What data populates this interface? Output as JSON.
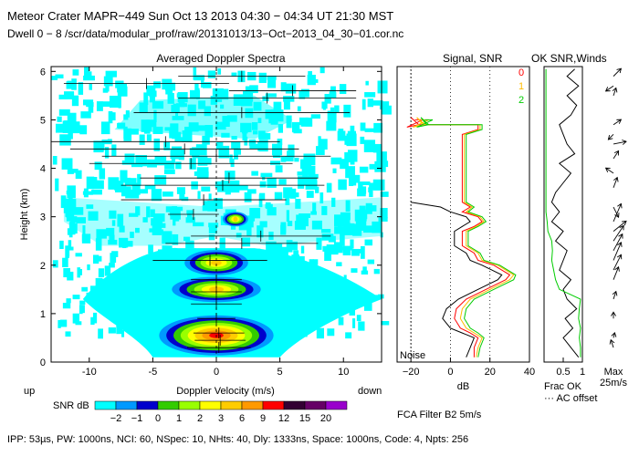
{
  "header": {
    "line1": "Meteor Crater   MAPR−449   Sun Oct 13 2013 04:30 − 04:34 UT 21:30 MST",
    "line2": "Dwell   0  −   8     /scr/data/modular_prof/raw/20131013/13−Oct−2013_04_30−01.cor.nc"
  },
  "footer": "IPP: 53µs,  PW: 1000ns,  NCI: 60,  NSpec: 10, NHts: 40,  Dly: 1333ns,  Space: 1000ns,  Code: 4,  Npts: 256",
  "chart_data": [
    {
      "type": "heatmap",
      "title": "Averaged Doppler Spectra",
      "xlabel": "Doppler Velocity (m/s)",
      "ylabel": "Height (km)",
      "xlim": [
        -13,
        13
      ],
      "ylim": [
        0,
        6.1
      ],
      "xticks": [
        -10,
        -5,
        0,
        5,
        10
      ],
      "yticks": [
        0,
        1,
        2,
        3,
        4,
        5,
        6
      ],
      "x_side_labels": {
        "left": "up",
        "right": "down"
      },
      "colorbar": {
        "label": "SNR dB",
        "levels": [
          "−2",
          "−1",
          "0",
          "1",
          "2",
          "3",
          "6",
          "9",
          "12",
          "15",
          "20"
        ],
        "colors": [
          "#00ffff",
          "#0099ff",
          "#0000cc",
          "#33cc00",
          "#99ff00",
          "#ffff00",
          "#ffcc00",
          "#ff9900",
          "#ff0000",
          "#330033",
          "#660066",
          "#9900cc"
        ]
      },
      "cores": [
        {
          "height_km": 0.55,
          "velocity": 0,
          "halfwidth": 4.5,
          "peak": "red"
        },
        {
          "height_km": 1.5,
          "velocity": 0,
          "halfwidth": 3.5,
          "peak": "yellow"
        },
        {
          "height_km": 2.05,
          "velocity": 0,
          "halfwidth": 2.5,
          "peak": "yellow"
        },
        {
          "height_km": 2.95,
          "velocity": 1.5,
          "halfwidth": 1.0,
          "peak": "yellow"
        }
      ],
      "spectral_bars": [
        {
          "height_km": 0.3,
          "center": 0.2,
          "halfwidth": 2.5
        },
        {
          "height_km": 0.45,
          "center": 0.3,
          "halfwidth": 2.0
        },
        {
          "height_km": 0.6,
          "center": 0.2,
          "halfwidth": 2.0
        },
        {
          "height_km": 0.9,
          "center": 0.0,
          "halfwidth": 1.5
        },
        {
          "height_km": 1.2,
          "center": 0.0,
          "halfwidth": 2.0
        },
        {
          "height_km": 1.45,
          "center": 0.0,
          "halfwidth": 2.0
        },
        {
          "height_km": 1.7,
          "center": 0.0,
          "halfwidth": 2.0
        },
        {
          "height_km": 2.1,
          "center": -0.5,
          "halfwidth": 4.5
        },
        {
          "height_km": 2.45,
          "center": 2.0,
          "halfwidth": 6.0
        },
        {
          "height_km": 2.6,
          "center": 3.5,
          "halfwidth": 5.5
        },
        {
          "height_km": 3.05,
          "center": -1.8,
          "halfwidth": 2.0
        },
        {
          "height_km": 3.35,
          "center": -1.0,
          "halfwidth": 6.5
        },
        {
          "height_km": 3.65,
          "center": 0.5,
          "halfwidth": 8.0
        },
        {
          "height_km": 3.8,
          "center": 1.0,
          "halfwidth": 7.0
        },
        {
          "height_km": 4.1,
          "center": -2.0,
          "halfwidth": 8.0
        },
        {
          "height_km": 4.25,
          "center": 0.0,
          "halfwidth": 9.0
        },
        {
          "height_km": 4.4,
          "center": -2.5,
          "halfwidth": 9.0
        },
        {
          "height_km": 4.55,
          "center": -4.0,
          "halfwidth": 9.0
        },
        {
          "height_km": 5.15,
          "center": 2.0,
          "halfwidth": 8.5
        },
        {
          "height_km": 5.45,
          "center": 4.0,
          "halfwidth": 7.0
        },
        {
          "height_km": 5.6,
          "center": 6.0,
          "halfwidth": 5.0
        },
        {
          "height_km": 5.75,
          "center": -5.5,
          "halfwidth": 6.5
        },
        {
          "height_km": 5.9,
          "center": 2.0,
          "halfwidth": 5.0
        }
      ]
    },
    {
      "type": "line",
      "title": "Signal, SNR",
      "xlabel": "dB",
      "xlim": [
        -27,
        40
      ],
      "xticks": [
        -20,
        0,
        20,
        40
      ],
      "ylim": [
        0,
        6.1
      ],
      "annotation": "Noise",
      "series": [
        {
          "name": "noise",
          "color": "#000000",
          "style": "dashed",
          "x": [
            -20,
            -20
          ],
          "y": [
            0,
            6.1
          ]
        },
        {
          "name": "0",
          "color": "#ff0000",
          "x": [
            12,
            12,
            14,
            10,
            5,
            2,
            3,
            8,
            18,
            28,
            30,
            22,
            14,
            12,
            6,
            6,
            12,
            16,
            14,
            6,
            10,
            6,
            6,
            14,
            14,
            -16,
            -20,
            -16,
            -22,
            -14,
            -18
          ],
          "y": [
            0.1,
            0.3,
            0.5,
            0.6,
            0.7,
            0.9,
            1.1,
            1.3,
            1.5,
            1.7,
            1.8,
            2.0,
            2.1,
            2.25,
            2.4,
            2.7,
            2.8,
            2.9,
            3.0,
            3.1,
            3.2,
            3.3,
            4.7,
            4.8,
            4.9,
            4.9,
            5.05,
            4.9,
            4.85,
            5.0,
            5.0
          ]
        },
        {
          "name": "1",
          "color": "#ffbb00",
          "x": [
            13,
            14,
            16,
            12,
            8,
            5,
            6,
            10,
            20,
            30,
            32,
            24,
            16,
            14,
            8,
            8,
            13,
            17,
            15,
            8,
            11,
            7,
            7,
            15,
            15,
            -14,
            -17,
            -13,
            -19,
            -11,
            -15
          ],
          "y": [
            0.1,
            0.3,
            0.5,
            0.6,
            0.7,
            0.9,
            1.1,
            1.3,
            1.5,
            1.7,
            1.8,
            2.0,
            2.1,
            2.25,
            2.4,
            2.7,
            2.8,
            2.9,
            3.0,
            3.1,
            3.2,
            3.3,
            4.7,
            4.8,
            4.9,
            4.9,
            5.05,
            4.9,
            4.85,
            5.0,
            5.0
          ]
        },
        {
          "name": "2",
          "color": "#00cc00",
          "x": [
            14,
            15,
            17,
            14,
            10,
            7,
            8,
            12,
            22,
            32,
            33,
            25,
            17,
            15,
            9,
            9,
            14,
            18,
            16,
            9,
            12,
            8,
            8,
            16,
            16,
            -12,
            -15,
            -11,
            -17,
            -9,
            -13
          ],
          "y": [
            0.1,
            0.3,
            0.5,
            0.6,
            0.7,
            0.9,
            1.1,
            1.3,
            1.5,
            1.7,
            1.8,
            2.0,
            2.1,
            2.25,
            2.4,
            2.7,
            2.8,
            2.9,
            3.0,
            3.1,
            3.2,
            3.3,
            4.7,
            4.8,
            4.9,
            4.9,
            5.05,
            4.9,
            4.85,
            5.0,
            5.0
          ]
        },
        {
          "name": "signal",
          "color": "#000000",
          "x": [
            8,
            10,
            12,
            6,
            0,
            -4,
            -2,
            4,
            14,
            24,
            26,
            16,
            10,
            8,
            2,
            2,
            6,
            10,
            8,
            0,
            -5,
            -20
          ],
          "y": [
            0.1,
            0.3,
            0.5,
            0.6,
            0.7,
            0.9,
            1.1,
            1.3,
            1.5,
            1.7,
            1.8,
            2.0,
            2.1,
            2.25,
            2.4,
            2.7,
            2.8,
            2.9,
            3.0,
            3.1,
            3.2,
            3.3
          ]
        }
      ],
      "legend": [
        "0",
        "1",
        "2"
      ],
      "footnote": "FCA Filter B2   5m/s"
    },
    {
      "type": "line",
      "title": "OK SNR,Winds",
      "xlabel": "Frac OK",
      "xlim": [
        0,
        1
      ],
      "xticks": [
        0.5,
        1
      ],
      "xtick_labels": [
        "0.5",
        "1"
      ],
      "ylim": [
        0,
        6.1
      ],
      "legend_note": "··· AC offset",
      "series": [
        {
          "name": "frac_ok",
          "color": "#000000",
          "x": [
            0.9,
            0.7,
            0.5,
            0.75,
            0.55,
            0.85,
            0.6,
            0.5,
            0.7,
            0.4,
            0.5,
            0.6,
            0.3,
            0.5,
            0.2,
            0.4,
            0.2,
            0.3,
            0.5,
            0.7,
            0.4,
            0.8,
            0.6,
            0.5,
            0.4,
            0.7,
            0.85,
            0.6,
            0.9,
            0.6,
            0.8
          ],
          "y": [
            0.1,
            0.3,
            0.5,
            0.7,
            0.9,
            1.1,
            1.3,
            1.5,
            1.7,
            1.9,
            2.1,
            2.3,
            2.5,
            2.7,
            2.9,
            3.1,
            3.3,
            3.5,
            3.7,
            3.9,
            4.1,
            4.3,
            4.5,
            4.7,
            4.9,
            5.1,
            5.3,
            5.5,
            5.7,
            5.9,
            6.05
          ]
        },
        {
          "name": "ac_offset",
          "color": "#00cc00",
          "x": [
            0.95,
            0.95,
            0.92,
            0.95,
            0.9,
            0.92,
            0.95,
            0.4,
            0.3,
            0.25,
            0.2,
            0.22,
            0.2,
            0.1,
            0.08,
            0.05,
            0.05,
            0.05,
            0.05,
            0.05,
            0.05,
            0.05,
            0.05
          ],
          "y": [
            0.1,
            0.3,
            0.5,
            0.7,
            0.9,
            1.1,
            1.3,
            1.5,
            1.7,
            1.9,
            2.1,
            2.3,
            2.5,
            2.7,
            2.9,
            3.1,
            3.5,
            4.0,
            4.5,
            5.0,
            5.5,
            5.8,
            6.05
          ]
        }
      ],
      "winds_label": "Max\n25m/s",
      "winds": [
        {
          "height_km": 0.3,
          "u": -0.1,
          "v": 0.3
        },
        {
          "height_km": 0.5,
          "u": 0.05,
          "v": 0.2
        },
        {
          "height_km": 0.9,
          "u": 0.0,
          "v": 0.25
        },
        {
          "height_km": 1.3,
          "u": 0.1,
          "v": 0.3
        },
        {
          "height_km": 1.7,
          "u": 0.2,
          "v": 0.5
        },
        {
          "height_km": 1.9,
          "u": 0.3,
          "v": 0.6
        },
        {
          "height_km": 2.1,
          "u": 0.3,
          "v": 0.7
        },
        {
          "height_km": 2.3,
          "u": 0.35,
          "v": 0.65
        },
        {
          "height_km": 2.5,
          "u": 0.4,
          "v": 0.6
        },
        {
          "height_km": 2.7,
          "u": 0.5,
          "v": 0.4
        },
        {
          "height_km": 2.9,
          "u": 0.3,
          "v": 0.7
        },
        {
          "height_km": 3.2,
          "u": 0.2,
          "v": -0.4
        },
        {
          "height_km": 3.6,
          "u": 0.15,
          "v": 0.4
        },
        {
          "height_km": 3.9,
          "u": -0.3,
          "v": 0.2
        },
        {
          "height_km": 4.2,
          "u": 0.2,
          "v": 0.3
        },
        {
          "height_km": 4.5,
          "u": 0.5,
          "v": 0.1
        },
        {
          "height_km": 4.7,
          "u": -0.2,
          "v": -0.2
        },
        {
          "height_km": 4.9,
          "u": 0.3,
          "v": 0.2
        },
        {
          "height_km": 5.5,
          "u": 0.1,
          "v": 0.3
        },
        {
          "height_km": 5.7,
          "u": -0.3,
          "v": -0.2
        },
        {
          "height_km": 5.9,
          "u": 0.3,
          "v": 0.3
        }
      ]
    }
  ]
}
